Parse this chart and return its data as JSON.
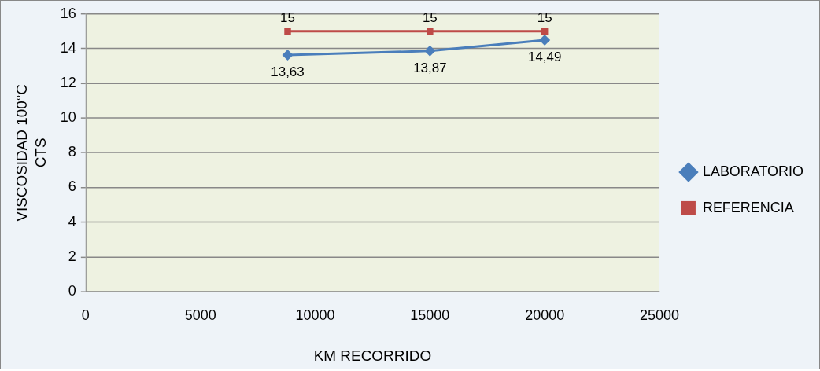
{
  "chart_data": {
    "type": "line",
    "xlabel": "KM RECORRIDO",
    "ylabel": "VISCOSIDAD 100°C CTS",
    "x": [
      8800,
      15000,
      20000
    ],
    "series": [
      {
        "name": "LABORATORIO",
        "color": "#4a7ebb",
        "marker": "diamond",
        "values": [
          13.63,
          13.87,
          14.49
        ],
        "value_labels": [
          "13,63",
          "13,87",
          "14,49"
        ]
      },
      {
        "name": "REFERENCIA",
        "color": "#be4b48",
        "marker": "square",
        "values": [
          15,
          15,
          15
        ],
        "value_labels": [
          "15",
          "15",
          "15"
        ]
      }
    ],
    "xlim": [
      0,
      25000
    ],
    "xticks": [
      0,
      5000,
      10000,
      15000,
      20000,
      25000
    ],
    "ylim": [
      0,
      16
    ],
    "yticks": [
      0,
      2,
      4,
      6,
      8,
      10,
      12,
      14,
      16
    ],
    "grid": "y",
    "legend": "right"
  }
}
